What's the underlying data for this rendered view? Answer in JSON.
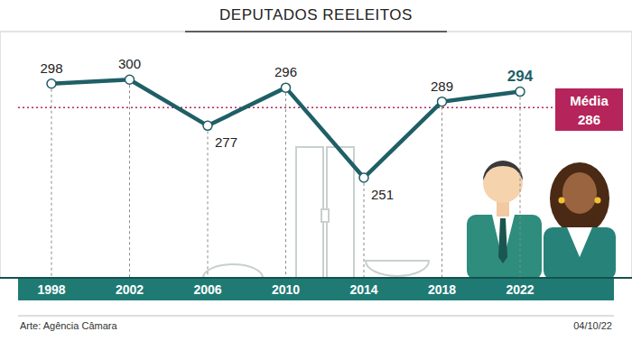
{
  "chart_data": {
    "type": "line",
    "title": "DEPUTADOS REELEITOS",
    "categories": [
      "1998",
      "2002",
      "2006",
      "2010",
      "2014",
      "2018",
      "2022"
    ],
    "values": [
      298,
      300,
      277,
      296,
      251,
      289,
      294
    ],
    "color": "#1f5f66",
    "ylim": [
      201,
      324
    ],
    "data_labels": true,
    "tick_labels": "x",
    "marker": "circle",
    "reference_line": {
      "label": "Média",
      "value": 286,
      "color": "#b5245a"
    },
    "source": "Arte: Agência Câmara",
    "date": "04/10/22"
  }
}
